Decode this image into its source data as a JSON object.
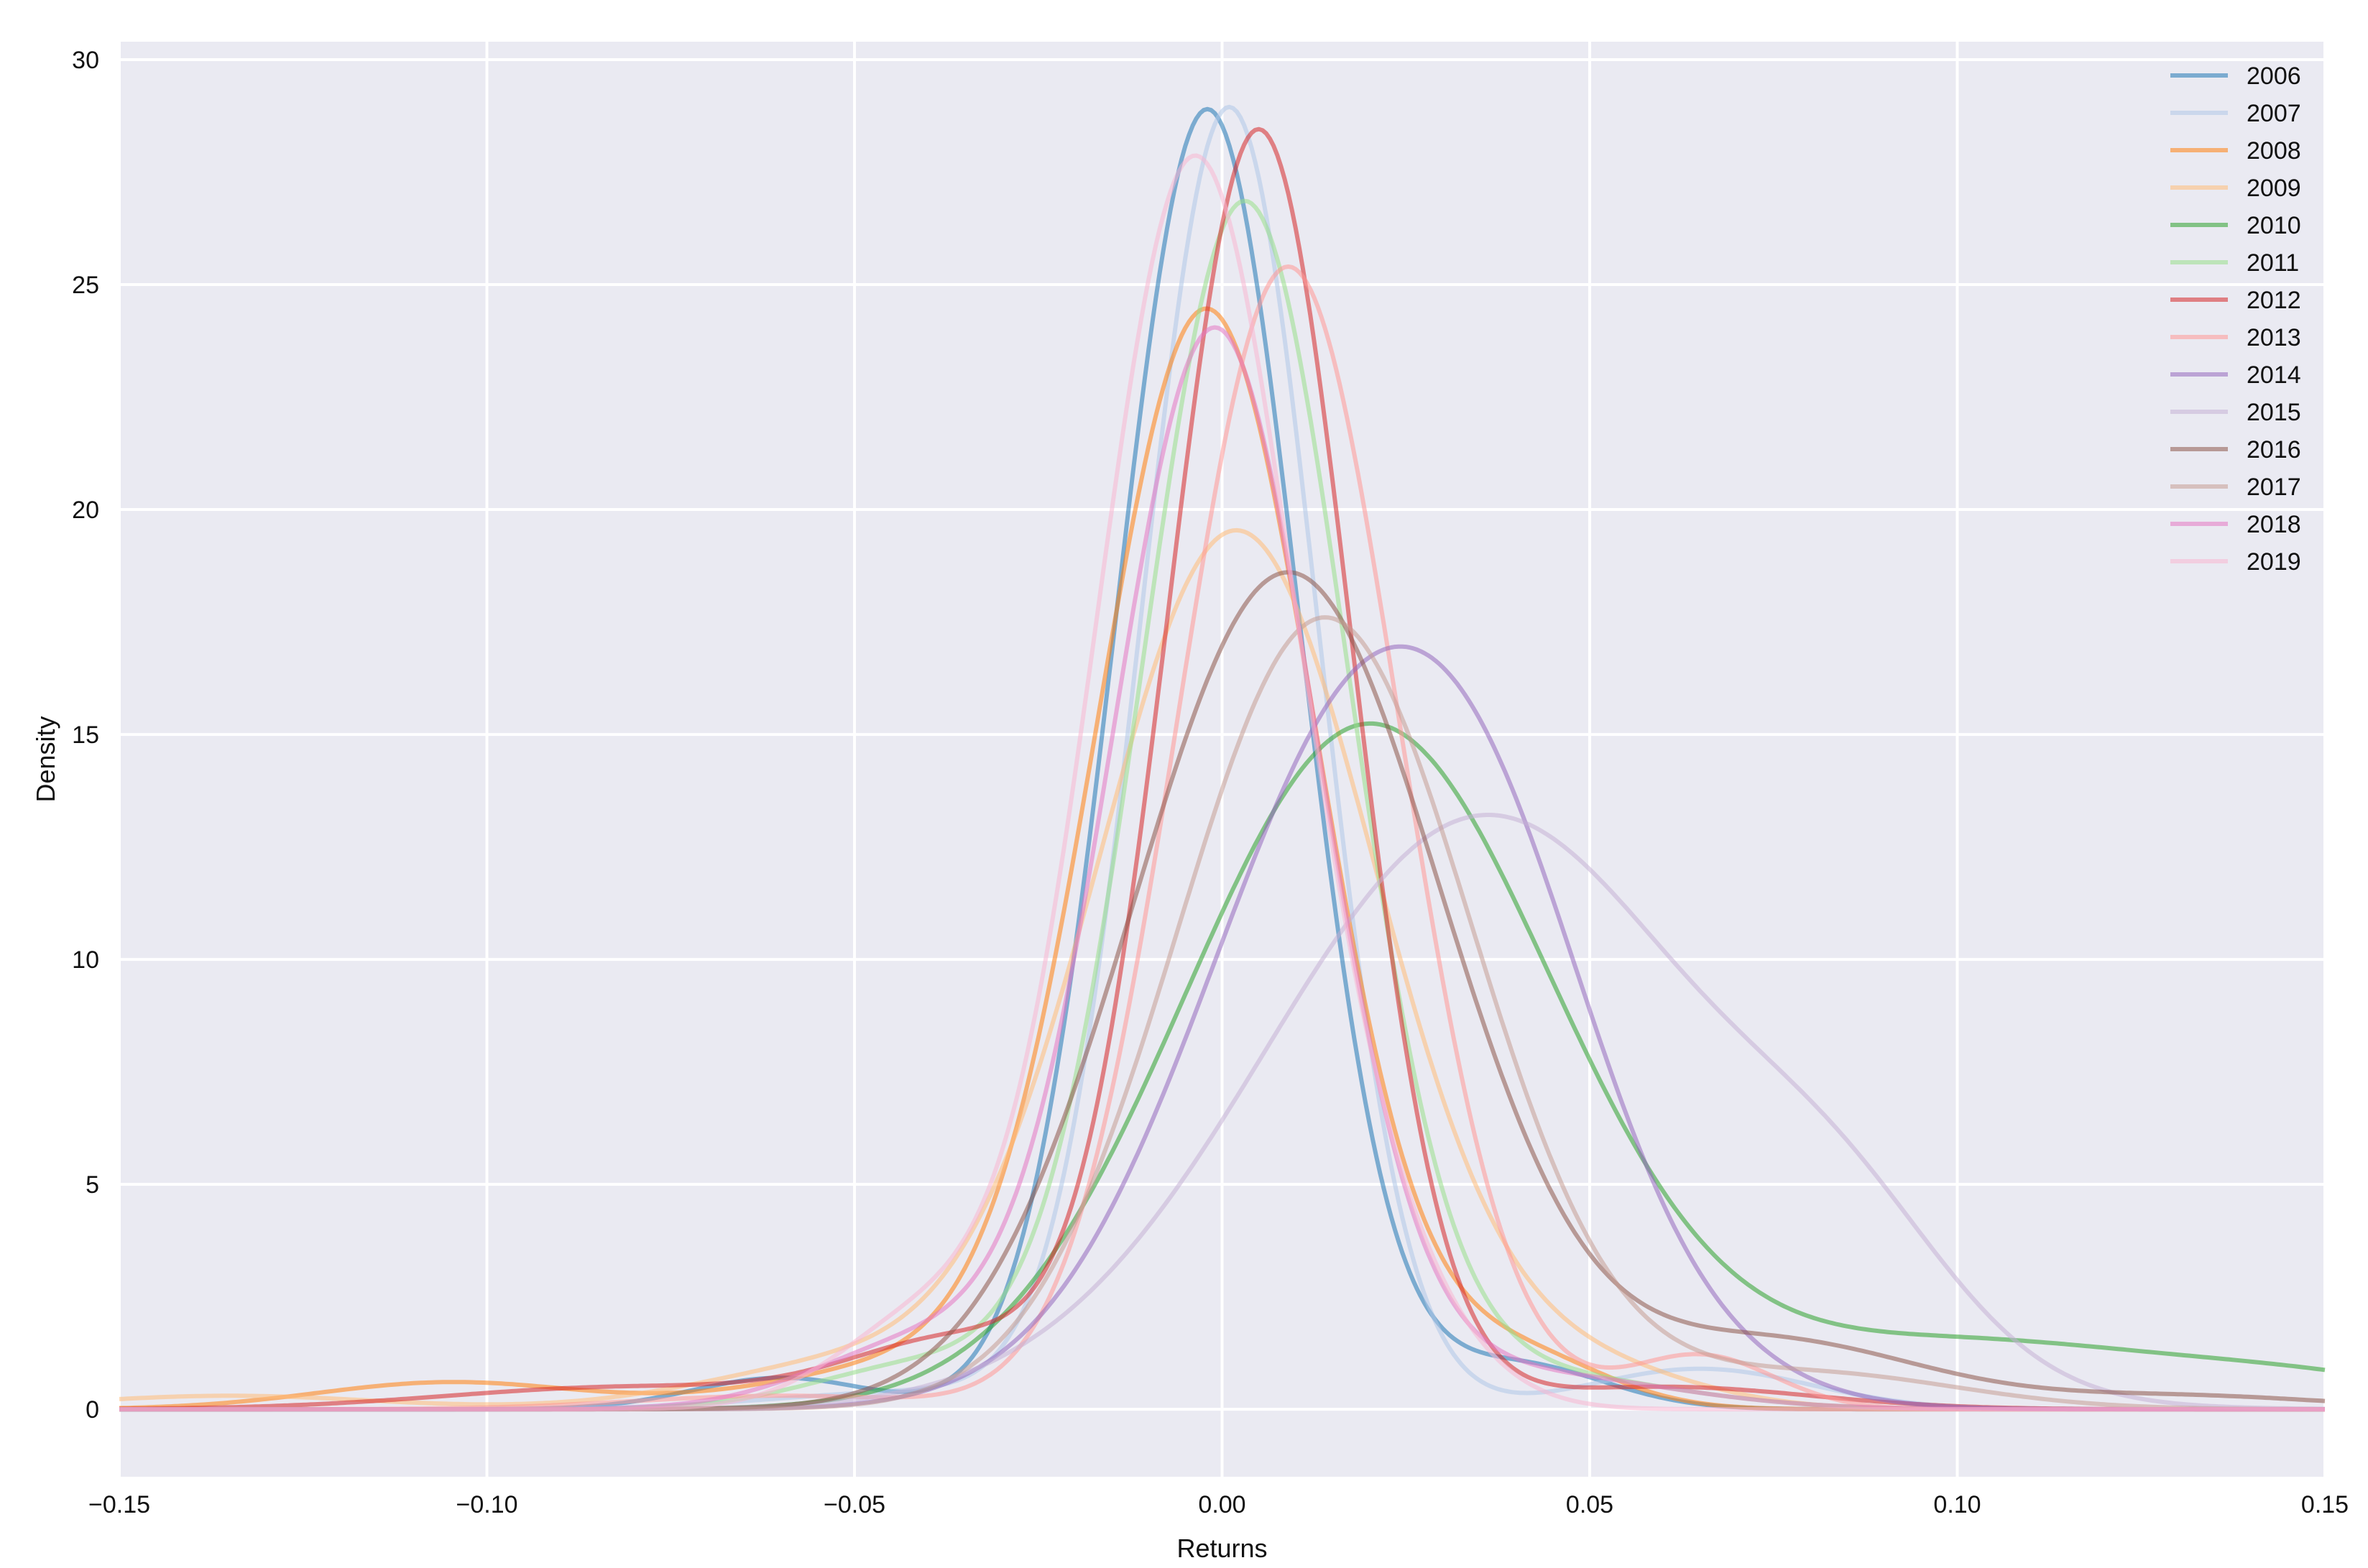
{
  "chart_data": {
    "type": "line",
    "title": "",
    "xlabel": "Returns",
    "ylabel": "Density",
    "xlim": [
      -0.15,
      0.15
    ],
    "ylim": [
      -1.5,
      30.4
    ],
    "x_ticks": [
      -0.15,
      -0.1,
      -0.05,
      0.0,
      0.05,
      0.1,
      0.15
    ],
    "x_tick_labels": [
      "−0.15",
      "−0.10",
      "−0.05",
      "0.00",
      "0.05",
      "0.10",
      "0.15"
    ],
    "y_ticks": [
      0,
      5,
      10,
      15,
      20,
      25,
      30
    ],
    "y_tick_labels": [
      "0",
      "5",
      "10",
      "15",
      "20",
      "25",
      "30"
    ],
    "grid": true,
    "legend_position": "top-right",
    "background_color": "#EAEAF2",
    "grid_color": "#FFFFFF",
    "series": [
      {
        "name": "2006",
        "color": "#1F77B4",
        "mu": -0.002,
        "sigma": 0.0125,
        "peak": 28.9,
        "bumps": [
          [
            -0.06,
            0.012,
            0.7
          ],
          [
            0.04,
            0.012,
            1.0
          ]
        ]
      },
      {
        "name": "2007",
        "color": "#AEC7E8",
        "mu": 0.001,
        "sigma": 0.012,
        "peak": 28.9,
        "bumps": [
          [
            0.065,
            0.015,
            0.9
          ],
          [
            -0.04,
            0.02,
            0.4
          ]
        ]
      },
      {
        "name": "2008",
        "color": "#FF7F0E",
        "mu": -0.002,
        "sigma": 0.015,
        "peak": 24.3,
        "bumps": [
          [
            -0.105,
            0.018,
            0.6
          ],
          [
            -0.04,
            0.02,
            1.0
          ],
          [
            0.04,
            0.012,
            1.2
          ]
        ]
      },
      {
        "name": "2009",
        "color": "#FFBB78",
        "mu": 0.002,
        "sigma": 0.019,
        "peak": 19.5,
        "bumps": [
          [
            -0.135,
            0.02,
            0.3
          ],
          [
            -0.05,
            0.02,
            1.0
          ],
          [
            0.05,
            0.015,
            0.8
          ]
        ]
      },
      {
        "name": "2010",
        "color": "#2CA02C",
        "mu": 0.02,
        "sigma": 0.025,
        "peak": 15.2,
        "bumps": [
          [
            0.1,
            0.03,
            1.5
          ],
          [
            0.15,
            0.02,
            0.5
          ]
        ]
      },
      {
        "name": "2011",
        "color": "#98DF8A",
        "mu": 0.003,
        "sigma": 0.014,
        "peak": 26.7,
        "bumps": [
          [
            -0.04,
            0.015,
            1.0
          ],
          [
            0.04,
            0.02,
            0.8
          ]
        ]
      },
      {
        "name": "2012",
        "color": "#D62728",
        "mu": 0.005,
        "sigma": 0.0125,
        "peak": 28.4,
        "bumps": [
          [
            -0.08,
            0.025,
            0.5
          ],
          [
            -0.035,
            0.015,
            1.5
          ],
          [
            0.06,
            0.02,
            0.5
          ]
        ]
      },
      {
        "name": "2013",
        "color": "#FF9896",
        "mu": 0.009,
        "sigma": 0.015,
        "peak": 25.4,
        "bumps": [
          [
            0.065,
            0.01,
            1.2
          ],
          [
            -0.06,
            0.02,
            0.3
          ]
        ]
      },
      {
        "name": "2014",
        "color": "#9467BD",
        "mu": 0.022,
        "sigma": 0.023,
        "peak": 16.4,
        "bumps": [
          [
            0.04,
            0.012,
            1.5
          ]
        ]
      },
      {
        "name": "2015",
        "color": "#C5B0D5",
        "mu": 0.036,
        "sigma": 0.03,
        "peak": 13.2,
        "bumps": [
          [
            0.085,
            0.015,
            2.5
          ]
        ]
      },
      {
        "name": "2016",
        "color": "#8C564B",
        "mu": 0.009,
        "sigma": 0.021,
        "peak": 18.6,
        "bumps": [
          [
            0.075,
            0.02,
            1.5
          ],
          [
            0.13,
            0.02,
            0.3
          ]
        ]
      },
      {
        "name": "2017",
        "color": "#C49C94",
        "mu": 0.014,
        "sigma": 0.02,
        "peak": 17.6,
        "bumps": [
          [
            0.08,
            0.02,
            0.8
          ]
        ]
      },
      {
        "name": "2018",
        "color": "#E377C2",
        "mu": -0.001,
        "sigma": 0.014,
        "peak": 23.9,
        "bumps": [
          [
            -0.04,
            0.015,
            1.5
          ],
          [
            0.04,
            0.02,
            0.8
          ]
        ]
      },
      {
        "name": "2019",
        "color": "#F7B6D2",
        "mu": -0.004,
        "sigma": 0.0135,
        "peak": 27.5,
        "bumps": [
          [
            -0.04,
            0.012,
            2.0
          ],
          [
            0.02,
            0.012,
            2.5
          ]
        ]
      }
    ]
  }
}
